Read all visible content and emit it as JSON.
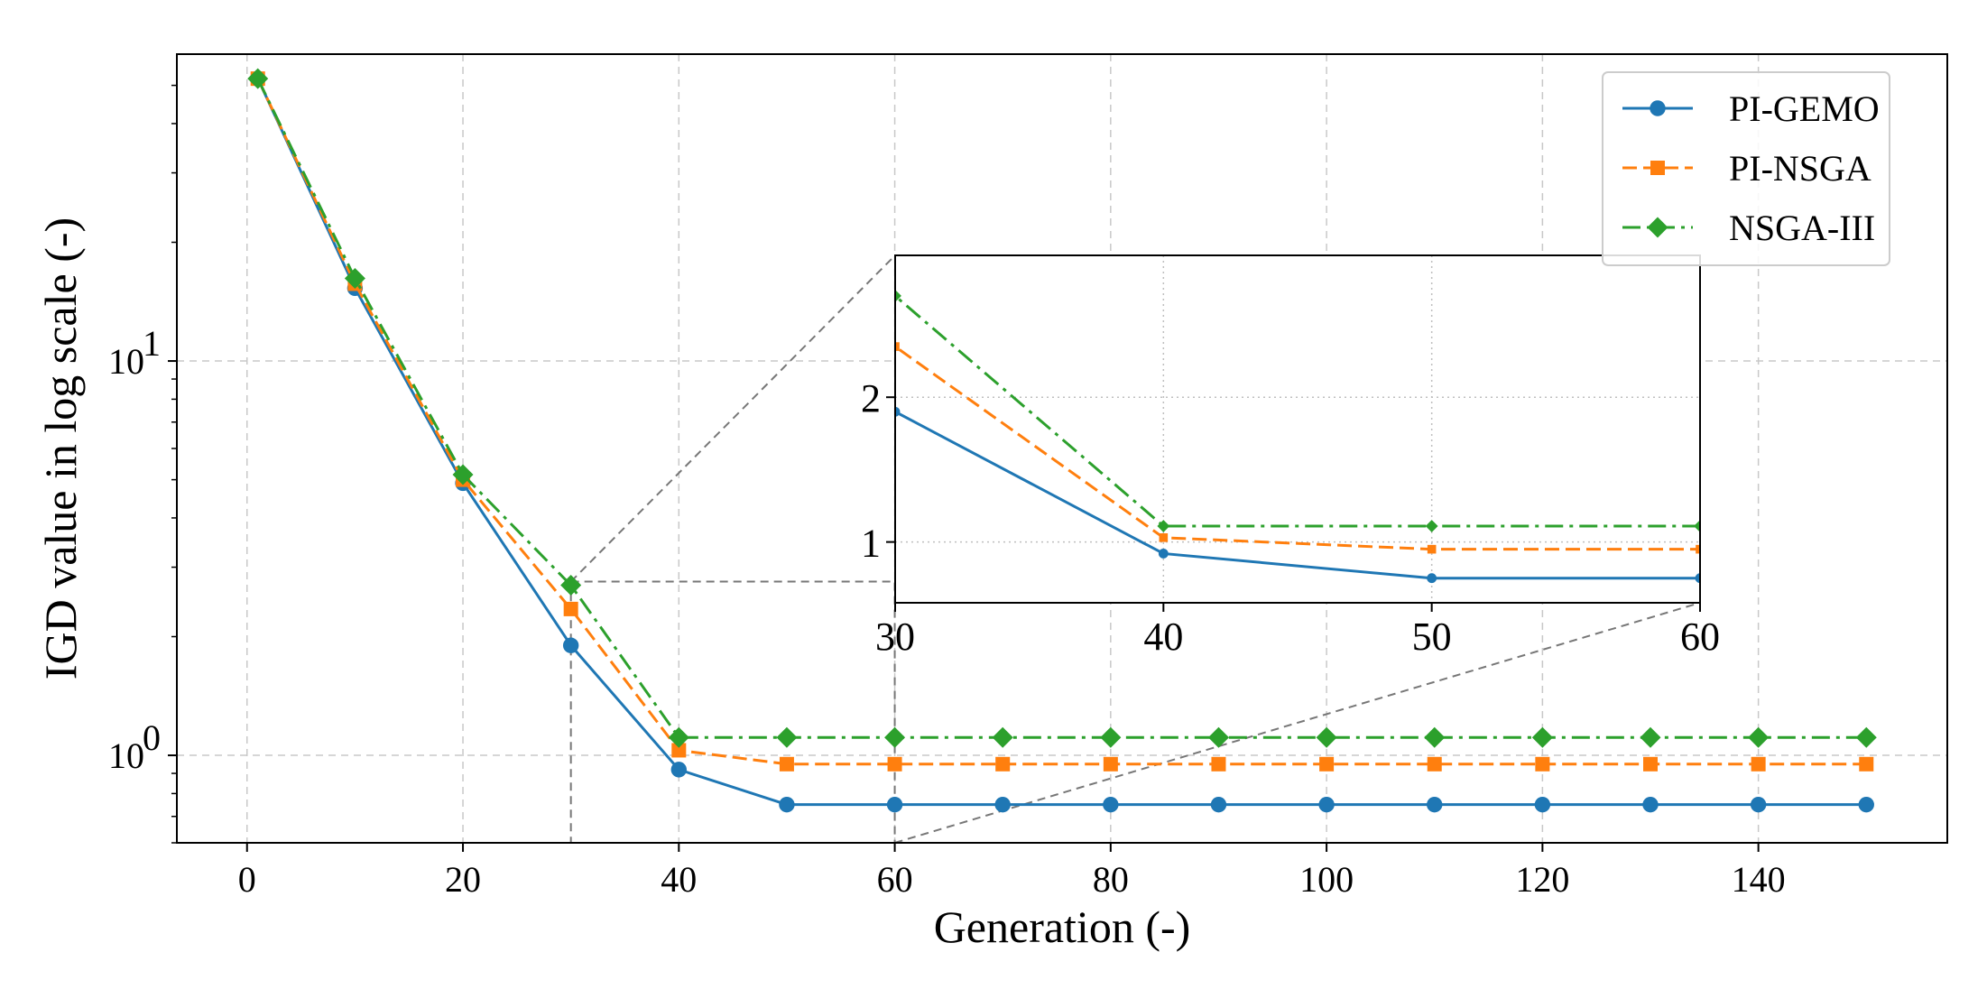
{
  "chart_data": {
    "type": "line",
    "xlabel": "Generation (-)",
    "ylabel": "IGD value in log scale (-)",
    "yscale": "log",
    "xlim": [
      -6.5,
      157.5
    ],
    "ylim": [
      0.6,
      60
    ],
    "xticks": [
      0,
      20,
      40,
      60,
      80,
      100,
      120,
      140
    ],
    "yticks": [
      {
        "value": 1,
        "label": "10",
        "exp": "0"
      },
      {
        "value": 10,
        "label": "10",
        "exp": "1"
      }
    ],
    "grid": true,
    "legend_position": "top-right",
    "x": [
      1,
      10,
      20,
      30,
      40,
      50,
      60,
      70,
      80,
      90,
      100,
      110,
      120,
      130,
      140,
      150
    ],
    "series": [
      {
        "name": "PI-GEMO",
        "color": "#1f77b4",
        "linestyle": "solid",
        "marker": "circle",
        "values": [
          52,
          15.3,
          4.9,
          1.9,
          0.92,
          0.75,
          0.75,
          0.75,
          0.75,
          0.75,
          0.75,
          0.75,
          0.75,
          0.75,
          0.75,
          0.75
        ]
      },
      {
        "name": "PI-NSGA",
        "color": "#ff7f0e",
        "linestyle": "dashed",
        "marker": "square",
        "values": [
          52,
          15.7,
          5.0,
          2.35,
          1.03,
          0.95,
          0.95,
          0.95,
          0.95,
          0.95,
          0.95,
          0.95,
          0.95,
          0.95,
          0.95,
          0.95
        ]
      },
      {
        "name": "NSGA-III",
        "color": "#2ca02c",
        "linestyle": "dashdot",
        "marker": "diamond",
        "values": [
          52,
          16.2,
          5.15,
          2.7,
          1.11,
          1.11,
          1.11,
          1.11,
          1.11,
          1.11,
          1.11,
          1.11,
          1.11,
          1.11,
          1.11,
          1.11
        ]
      }
    ],
    "inset": {
      "xlim": [
        30,
        60
      ],
      "ylim": [
        0.58,
        2.98
      ],
      "xticks": [
        30,
        40,
        50,
        60
      ],
      "yticks": [
        1,
        2
      ],
      "grid": true,
      "grid_style": "dotted"
    }
  }
}
